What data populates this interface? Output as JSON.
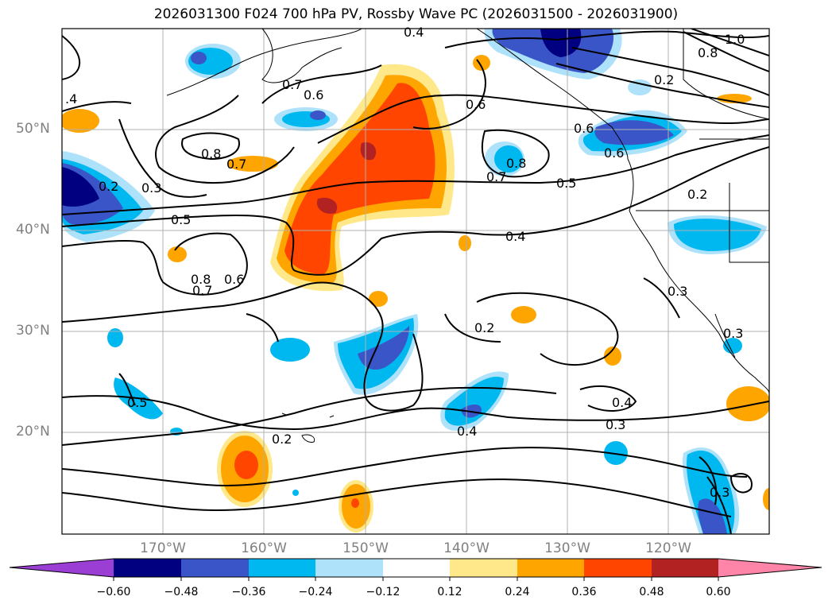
{
  "title": "2026031300 F024 700 hPa PV, Rossby Wave PC (2026031500 - 2026031900)",
  "map": {
    "lat_labels": [
      "50°N",
      "40°N",
      "30°N",
      "20°N"
    ],
    "lon_labels": [
      "170°W",
      "160°W",
      "150°W",
      "140°W",
      "130°W",
      "120°W"
    ],
    "contour_labels": [
      "0.4",
      "0.7",
      "0.6",
      "0.8",
      "0.7",
      "0.3",
      "0.5",
      "0.2",
      "0.8",
      "0.6",
      "0.7",
      "0.8",
      "0.7",
      "0.6",
      "0.4",
      "0.2",
      "0.5",
      "0.2",
      "0.6",
      "0.4",
      "0.3",
      "0.4",
      "0.2",
      "0.3",
      "0.3",
      "0.3",
      ".4",
      "0.5",
      "1.0",
      "0.2",
      "0.8",
      "0.6"
    ]
  },
  "colorbar": {
    "colors": [
      "#9b3fd4",
      "#000080",
      "#3a55c8",
      "#00b8f0",
      "#aee2fa",
      "#ffffff",
      "#ffe88a",
      "#ffa500",
      "#ff4500",
      "#b22222",
      "#ff85a8"
    ],
    "tick_labels": [
      "−0.60",
      "−0.48",
      "−0.36",
      "−0.24",
      "−0.12",
      "0.12",
      "0.24",
      "0.36",
      "0.48",
      "0.60"
    ]
  },
  "legend_colors": {
    "orange": "#ffa500",
    "red_orange": "#ff4500",
    "dark_red": "#b22222",
    "light_yellow": "#ffe88a",
    "light_blue": "#aee2fa",
    "blue": "#00b8f0",
    "med_blue": "#3a55c8",
    "navy": "#000080"
  }
}
